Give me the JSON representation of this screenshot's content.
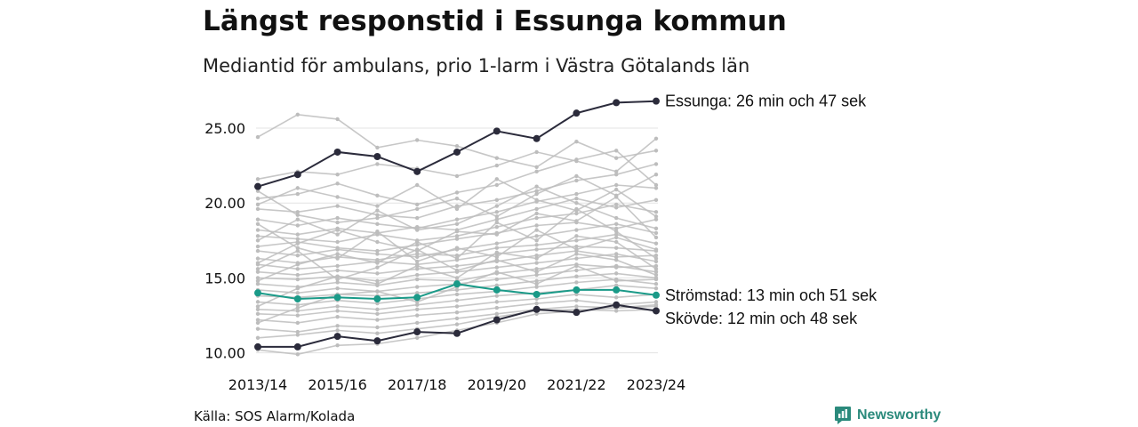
{
  "header": {
    "title": "Längst responstid i Essunga kommun",
    "subtitle": "Mediantid för ambulans, prio 1-larm i Västra Götalands län"
  },
  "footer": {
    "source": "Källa: SOS Alarm/Kolada",
    "brand": "Newsworthy"
  },
  "colors": {
    "highlight_dark": "#2b2b3b",
    "highlight_teal": "#1a9a88",
    "background_lines": "#bdbdbd",
    "grid": "#e3e3e3",
    "brand": "#2b8a7c"
  },
  "chart_data": {
    "type": "line",
    "x": [
      "2013/14",
      "2014/15",
      "2015/16",
      "2016/17",
      "2017/18",
      "2018/19",
      "2019/20",
      "2020/21",
      "2021/22",
      "2022/23",
      "2023/24"
    ],
    "x_tick_labels": [
      "2013/14",
      "2015/16",
      "2017/18",
      "2019/20",
      "2021/22",
      "2023/24"
    ],
    "y_ticks": [
      "10.00",
      "15.00",
      "20.00",
      "25.00"
    ],
    "y_tick_values": [
      10,
      15,
      20,
      25
    ],
    "ylim": [
      9.8,
      26.9
    ],
    "grid": true,
    "highlighted_series": [
      {
        "name": "Essunga",
        "label": "Essunga: 26 min och 47 sek",
        "color": "#2b2b3b",
        "values": [
          21.1,
          21.9,
          23.4,
          23.1,
          22.1,
          23.4,
          24.8,
          24.3,
          26.0,
          26.7,
          26.8
        ]
      },
      {
        "name": "Strömstad",
        "label": "Strömstad: 13 min och 51 sek",
        "color": "#1a9a88",
        "values": [
          14.0,
          13.6,
          13.7,
          13.6,
          13.7,
          14.6,
          14.2,
          13.9,
          14.2,
          14.2,
          13.85
        ]
      },
      {
        "name": "Skövde",
        "label": "Skövde: 12 min och 48 sek",
        "color": "#2b2b3b",
        "values": [
          10.4,
          10.4,
          11.1,
          10.8,
          11.4,
          11.3,
          12.2,
          12.9,
          12.7,
          13.2,
          12.8
        ]
      }
    ],
    "background_series": [
      [
        24.4,
        25.9,
        25.6,
        23.7,
        24.2,
        23.8,
        23.0,
        22.4,
        24.1,
        23.0,
        23.5
      ],
      [
        21.6,
        22.1,
        21.9,
        22.6,
        22.3,
        21.8,
        22.5,
        23.4,
        22.8,
        22.1,
        24.3
      ],
      [
        20.3,
        20.6,
        21.3,
        20.5,
        19.9,
        20.7,
        21.2,
        22.1,
        22.9,
        23.5,
        21.2
      ],
      [
        19.6,
        19.4,
        19.8,
        19.2,
        19.0,
        19.8,
        20.2,
        20.8,
        21.5,
        21.9,
        22.6
      ],
      [
        18.9,
        18.5,
        19.0,
        18.6,
        18.3,
        18.9,
        19.4,
        20.1,
        20.6,
        21.2,
        21.0
      ],
      [
        18.2,
        17.9,
        18.3,
        18.0,
        18.4,
        18.2,
        18.9,
        19.6,
        20.3,
        19.7,
        20.2
      ],
      [
        17.8,
        17.6,
        17.4,
        17.9,
        17.5,
        17.8,
        18.4,
        19.0,
        19.3,
        19.9,
        19.4
      ],
      [
        17.1,
        17.4,
        17.0,
        16.8,
        17.2,
        17.6,
        18.0,
        18.5,
        18.7,
        18.3,
        18.9
      ],
      [
        16.8,
        16.5,
        16.9,
        16.6,
        16.4,
        16.9,
        17.3,
        17.8,
        18.2,
        18.6,
        18.0
      ],
      [
        16.3,
        16.0,
        16.4,
        16.2,
        16.6,
        16.5,
        17.0,
        17.2,
        17.5,
        17.9,
        17.3
      ],
      [
        15.9,
        15.6,
        15.8,
        16.1,
        15.9,
        16.2,
        16.6,
        16.9,
        17.1,
        17.0,
        16.8
      ],
      [
        15.4,
        15.2,
        15.5,
        15.3,
        15.6,
        15.8,
        16.1,
        16.5,
        16.8,
        16.4,
        16.5
      ],
      [
        15.0,
        14.9,
        15.1,
        14.8,
        15.2,
        15.4,
        15.7,
        16.0,
        16.3,
        16.6,
        16.1
      ],
      [
        14.6,
        14.4,
        14.7,
        14.5,
        14.9,
        14.8,
        15.3,
        15.6,
        15.9,
        15.7,
        15.8
      ],
      [
        14.2,
        14.0,
        14.3,
        14.1,
        14.4,
        14.6,
        14.9,
        15.2,
        15.5,
        15.8,
        15.4
      ],
      [
        13.8,
        13.7,
        13.9,
        13.8,
        14.0,
        14.2,
        14.5,
        14.8,
        15.1,
        15.3,
        15.0
      ],
      [
        13.4,
        13.2,
        13.5,
        13.3,
        13.6,
        13.9,
        14.1,
        14.4,
        14.7,
        14.9,
        14.6
      ],
      [
        12.9,
        12.8,
        13.1,
        12.9,
        13.2,
        13.5,
        13.8,
        14.0,
        14.2,
        14.5,
        14.3
      ],
      [
        12.6,
        12.5,
        12.8,
        12.6,
        12.9,
        13.1,
        13.4,
        13.6,
        13.9,
        13.7,
        13.9
      ],
      [
        12.2,
        12.0,
        12.4,
        12.2,
        12.5,
        12.7,
        13.0,
        13.3,
        13.5,
        13.2,
        13.4
      ],
      [
        11.6,
        11.4,
        11.8,
        11.7,
        12.0,
        12.3,
        12.6,
        12.9,
        13.1,
        13.0,
        13.1
      ],
      [
        11.0,
        11.2,
        11.5,
        11.3,
        11.6,
        11.9,
        12.4,
        12.8,
        12.9,
        12.8,
        12.9
      ],
      [
        10.2,
        9.9,
        10.5,
        10.6,
        11.0,
        11.5,
        12.0,
        12.6,
        12.8,
        13.0,
        13.2
      ],
      [
        19.9,
        21.0,
        20.4,
        19.8,
        21.2,
        19.6,
        21.6,
        20.2,
        19.5,
        20.9,
        19.1
      ],
      [
        17.5,
        18.9,
        17.9,
        19.5,
        18.2,
        18.6,
        19.8,
        21.1,
        20.0,
        19.0,
        18.3
      ],
      [
        16.0,
        17.3,
        18.2,
        17.4,
        16.8,
        18.1,
        17.9,
        19.3,
        18.8,
        20.4,
        17.7
      ],
      [
        14.8,
        15.9,
        16.6,
        16.0,
        17.4,
        16.3,
        18.7,
        17.5,
        19.6,
        18.1,
        16.3
      ],
      [
        13.1,
        14.3,
        15.1,
        14.6,
        15.8,
        15.0,
        16.7,
        16.3,
        17.8,
        17.4,
        15.6
      ],
      [
        18.6,
        17.0,
        16.3,
        18.1,
        16.1,
        17.0,
        16.4,
        18.2,
        16.9,
        17.7,
        16.9
      ],
      [
        20.8,
        19.2,
        18.7,
        19.0,
        19.6,
        20.3,
        19.1,
        20.6,
        21.8,
        20.5,
        21.9
      ],
      [
        15.6,
        16.8,
        14.9,
        15.7,
        16.9,
        15.5,
        16.2,
        15.4,
        16.6,
        16.2,
        15.2
      ],
      [
        12.0,
        13.0,
        13.9,
        14.1,
        13.4,
        14.4,
        15.4,
        14.6,
        15.8,
        14.8,
        14.9
      ]
    ]
  }
}
